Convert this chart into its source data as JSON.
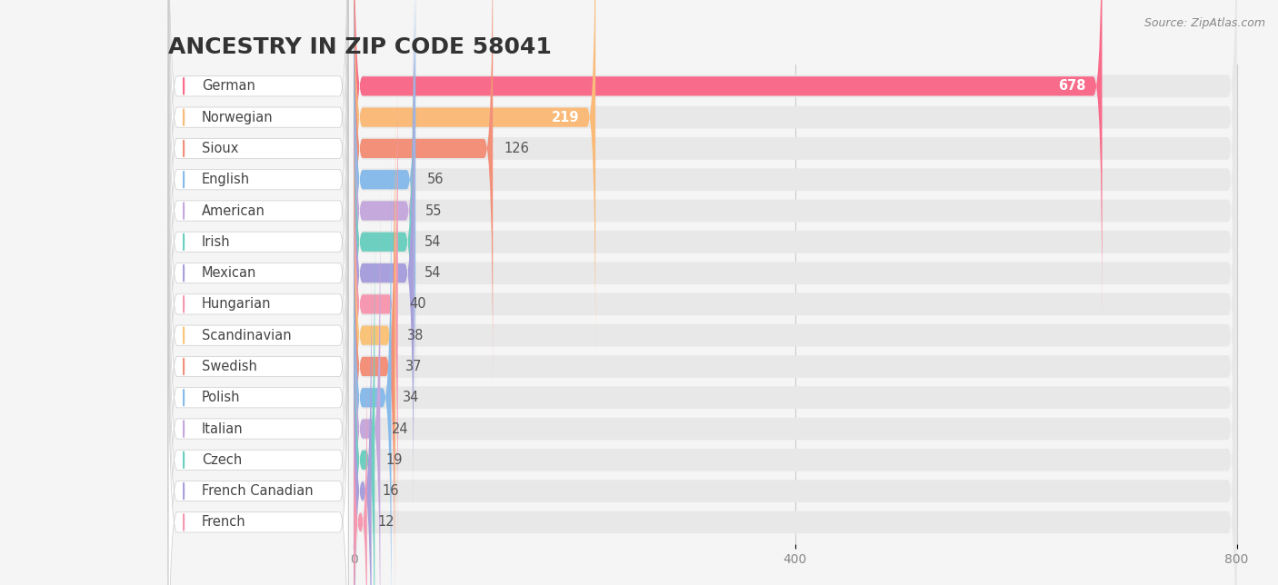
{
  "title": "ANCESTRY IN ZIP CODE 58041",
  "source_text": "Source: ZipAtlas.com",
  "categories": [
    "German",
    "Norwegian",
    "Sioux",
    "English",
    "American",
    "Irish",
    "Mexican",
    "Hungarian",
    "Scandinavian",
    "Swedish",
    "Polish",
    "Italian",
    "Czech",
    "French Canadian",
    "French"
  ],
  "values": [
    678,
    219,
    126,
    56,
    55,
    54,
    54,
    40,
    38,
    37,
    34,
    24,
    19,
    16,
    12
  ],
  "bar_colors": [
    "#F96B8A",
    "#F9BA7A",
    "#F2907A",
    "#88BBEA",
    "#C5A8DC",
    "#6DCFBF",
    "#A8A0DC",
    "#F598B0",
    "#F9C47A",
    "#F2907A",
    "#88BBEA",
    "#C5A8DC",
    "#6DCFBF",
    "#A8A0DC",
    "#F598B0"
  ],
  "background_color": "#f5f5f5",
  "bar_background_color": "#e8e8e8",
  "xlim_max": 800,
  "xticks": [
    0,
    400,
    800
  ],
  "title_fontsize": 18,
  "label_fontsize": 10.5,
  "value_fontsize": 10.5
}
